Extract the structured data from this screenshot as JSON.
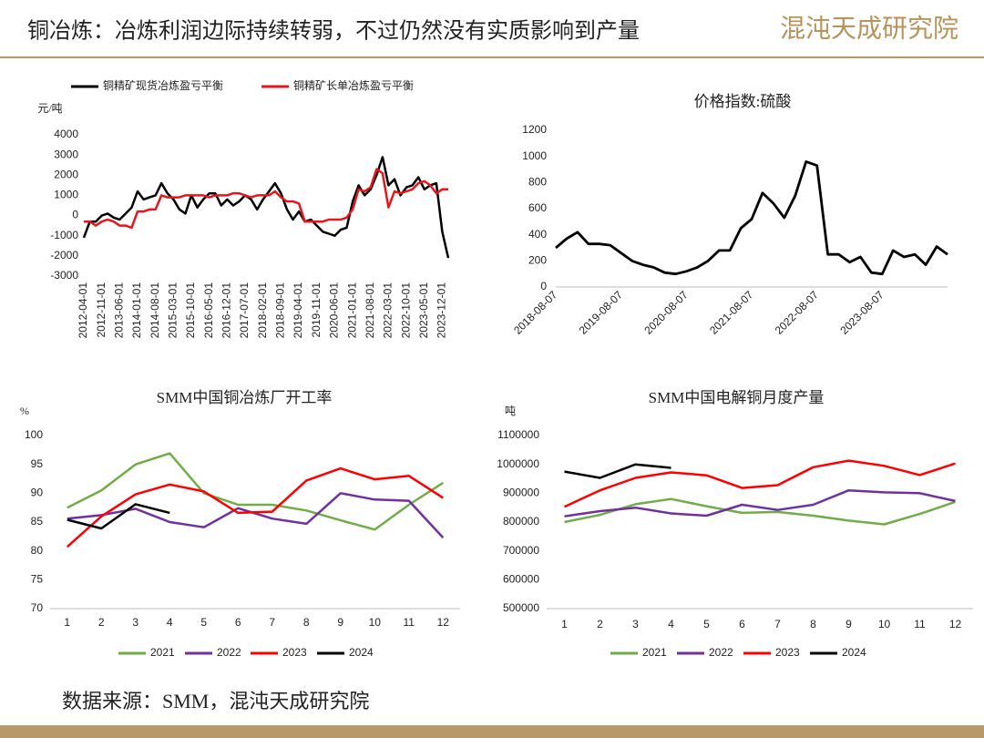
{
  "header": {
    "title": "铜冶炼：冶炼利润边际持续转弱，不过仍然没有实质影响到产量",
    "logo": "混沌天成研究院"
  },
  "chart_data": [
    {
      "type": "line",
      "y_label": "元/吨",
      "legend": "top",
      "categories": [
        "2012-04-01",
        null,
        null,
        "2012-11-01",
        null,
        null,
        "2013-06-01",
        null,
        null,
        "2014-01-01",
        null,
        null,
        "2014-08-01",
        null,
        null,
        "2015-03-01",
        null,
        null,
        "2015-10-01",
        null,
        null,
        "2016-05-01",
        null,
        null,
        "2016-12-01",
        null,
        null,
        "2017-07-01",
        null,
        null,
        "2018-02-01",
        null,
        null,
        "2018-09-01",
        null,
        null,
        "2019-04-01",
        null,
        null,
        "2019-11-01",
        null,
        null,
        "2020-06-01",
        null,
        null,
        "2021-01-01",
        null,
        null,
        "2021-08-01",
        null,
        null,
        "2022-03-01",
        null,
        null,
        "2022-10-01",
        null,
        null,
        "2023-05-01",
        null,
        null,
        "2023-12-01",
        null
      ],
      "series": [
        {
          "name": "铜精矿现货冶炼盈亏平衡",
          "color": "#000000",
          "values": [
            -1100,
            -300,
            -300,
            0,
            100,
            -100,
            -200,
            100,
            400,
            1200,
            800,
            900,
            1000,
            1600,
            1100,
            800,
            300,
            100,
            1000,
            400,
            800,
            1100,
            1100,
            500,
            800,
            500,
            700,
            1000,
            800,
            300,
            800,
            1200,
            1600,
            1100,
            300,
            -200,
            200,
            -300,
            -200,
            -500,
            -800,
            -900,
            -1000,
            -700,
            -600,
            700,
            1500,
            1000,
            1300,
            2000,
            2900,
            1500,
            1800,
            1000,
            1400,
            1500,
            1900,
            1300,
            1500,
            1600,
            -800,
            -2100
          ]
        },
        {
          "name": "铜精矿长单冶炼盈亏平衡",
          "color": "#e8151b",
          "values": [
            -300,
            -300,
            -500,
            -300,
            -200,
            -300,
            -500,
            -500,
            -600,
            200,
            200,
            300,
            300,
            1000,
            900,
            900,
            900,
            1000,
            1000,
            1000,
            1000,
            900,
            1000,
            1000,
            1000,
            1100,
            1100,
            1000,
            900,
            1000,
            1000,
            1000,
            1200,
            900,
            700,
            700,
            600,
            -300,
            -300,
            -300,
            -300,
            -200,
            -200,
            -200,
            -100,
            300,
            1300,
            1200,
            1400,
            2300,
            2100,
            400,
            1200,
            1100,
            1200,
            1300,
            1600,
            1700,
            1500,
            1100,
            1300,
            1300
          ]
        }
      ],
      "ylim": [
        -3000,
        4000
      ],
      "yticks": [
        -3000,
        -2000,
        -1000,
        0,
        1000,
        2000,
        3000,
        4000
      ],
      "grid": false
    },
    {
      "type": "line",
      "title": "价格指数:硫酸",
      "color": "#000000",
      "categories": [
        "2018-08-07",
        null,
        null,
        null,
        null,
        null,
        "2019-08-07",
        null,
        null,
        null,
        null,
        null,
        "2020-08-07",
        null,
        null,
        null,
        null,
        null,
        "2021-08-07",
        null,
        null,
        null,
        null,
        null,
        "2022-08-07",
        null,
        null,
        null,
        null,
        null,
        "2023-08-07",
        null,
        null,
        null,
        null,
        null,
        null
      ],
      "values": [
        300,
        370,
        420,
        330,
        330,
        320,
        260,
        200,
        170,
        150,
        110,
        100,
        120,
        150,
        200,
        280,
        280,
        450,
        520,
        720,
        640,
        530,
        700,
        960,
        930,
        250,
        250,
        190,
        230,
        110,
        100,
        280,
        230,
        250,
        170,
        310,
        250
      ],
      "ylim": [
        0,
        1200
      ],
      "yticks": [
        0,
        200,
        400,
        600,
        800,
        1000,
        1200
      ],
      "grid": false
    },
    {
      "type": "line",
      "title": "SMM中国铜冶炼厂开工率",
      "y_label": "%",
      "legend": "bottom",
      "categories": [
        "1",
        "2",
        "3",
        "4",
        "5",
        "6",
        "7",
        "8",
        "9",
        "10",
        "11",
        "12"
      ],
      "series": [
        {
          "name": "2021",
          "color": "#70ad47",
          "values": [
            87.5,
            90.5,
            95,
            96.9,
            90,
            88,
            88,
            87,
            85.3,
            83.7,
            88,
            91.8
          ]
        },
        {
          "name": "2022",
          "color": "#7030a0",
          "values": [
            85.6,
            86.2,
            87.3,
            85,
            84.1,
            87.4,
            85.6,
            84.7,
            90,
            88.9,
            88.7,
            82.3
          ]
        },
        {
          "name": "2023",
          "color": "#ff0000",
          "values": [
            80.7,
            86,
            89.8,
            91.5,
            90.3,
            86.6,
            86.8,
            92.2,
            94.3,
            92.4,
            93,
            89.2
          ]
        },
        {
          "name": "2024",
          "color": "#000000",
          "values": [
            85.4,
            83.9,
            88.1,
            86.6,
            null,
            null,
            null,
            null,
            null,
            null,
            null,
            null
          ]
        }
      ],
      "ylim": [
        70,
        100
      ],
      "yticks": [
        70,
        75,
        80,
        85,
        90,
        95,
        100
      ],
      "grid": false
    },
    {
      "type": "line",
      "title": "SMM中国电解铜月度产量",
      "y_label": "吨",
      "legend": "bottom",
      "categories": [
        "1",
        "2",
        "3",
        "4",
        "5",
        "6",
        "7",
        "8",
        "9",
        "10",
        "11",
        "12"
      ],
      "series": [
        {
          "name": "2021",
          "color": "#70ad47",
          "values": [
            800000,
            825000,
            862000,
            880000,
            855000,
            832000,
            835000,
            822000,
            805000,
            792000,
            828000,
            870000
          ]
        },
        {
          "name": "2022",
          "color": "#7030a0",
          "values": [
            820000,
            838000,
            850000,
            830000,
            822000,
            860000,
            842000,
            860000,
            910000,
            903000,
            900000,
            873000
          ]
        },
        {
          "name": "2023",
          "color": "#ff0000",
          "values": [
            853000,
            910000,
            953000,
            972000,
            962000,
            918000,
            928000,
            990000,
            1013000,
            995000,
            963000,
            1003000
          ]
        },
        {
          "name": "2024",
          "color": "#000000",
          "values": [
            975000,
            953000,
            1000000,
            988000,
            null,
            null,
            null,
            null,
            null,
            null,
            null,
            null
          ]
        }
      ],
      "ylim": [
        500000,
        1100000
      ],
      "yticks": [
        500000,
        600000,
        700000,
        800000,
        900000,
        1000000,
        1100000
      ],
      "grid": false
    }
  ],
  "source": "数据来源：SMM，混沌天成研究院"
}
